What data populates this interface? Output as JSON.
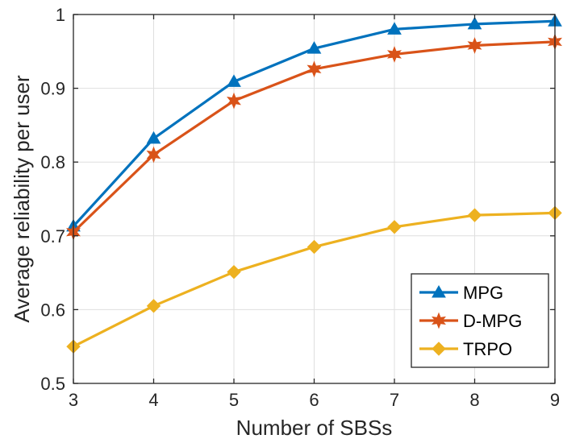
{
  "chart_data": {
    "type": "line",
    "title": "",
    "xlabel": "Number of SBSs",
    "ylabel": "Average reliability per user",
    "x": [
      3,
      4,
      5,
      6,
      7,
      8,
      9
    ],
    "xlim": [
      3,
      9
    ],
    "ylim": [
      0.5,
      1
    ],
    "xticks": [
      "3",
      "4",
      "5",
      "6",
      "7",
      "8",
      "9"
    ],
    "yticks": [
      "0.5",
      "0.6",
      "0.7",
      "0.8",
      "0.9",
      "1"
    ],
    "grid": true,
    "legend_position": "bottom-right",
    "series": [
      {
        "name": "MPG",
        "color": "#0072BD",
        "marker": "triangle",
        "values": [
          0.713,
          0.832,
          0.909,
          0.954,
          0.98,
          0.987,
          0.991
        ]
      },
      {
        "name": "D-MPG",
        "color": "#D95319",
        "marker": "hexagram",
        "values": [
          0.705,
          0.81,
          0.883,
          0.926,
          0.946,
          0.958,
          0.963
        ]
      },
      {
        "name": "TRPO",
        "color": "#EDB120",
        "marker": "diamond",
        "values": [
          0.55,
          0.605,
          0.651,
          0.685,
          0.712,
          0.728,
          0.731
        ]
      }
    ]
  }
}
